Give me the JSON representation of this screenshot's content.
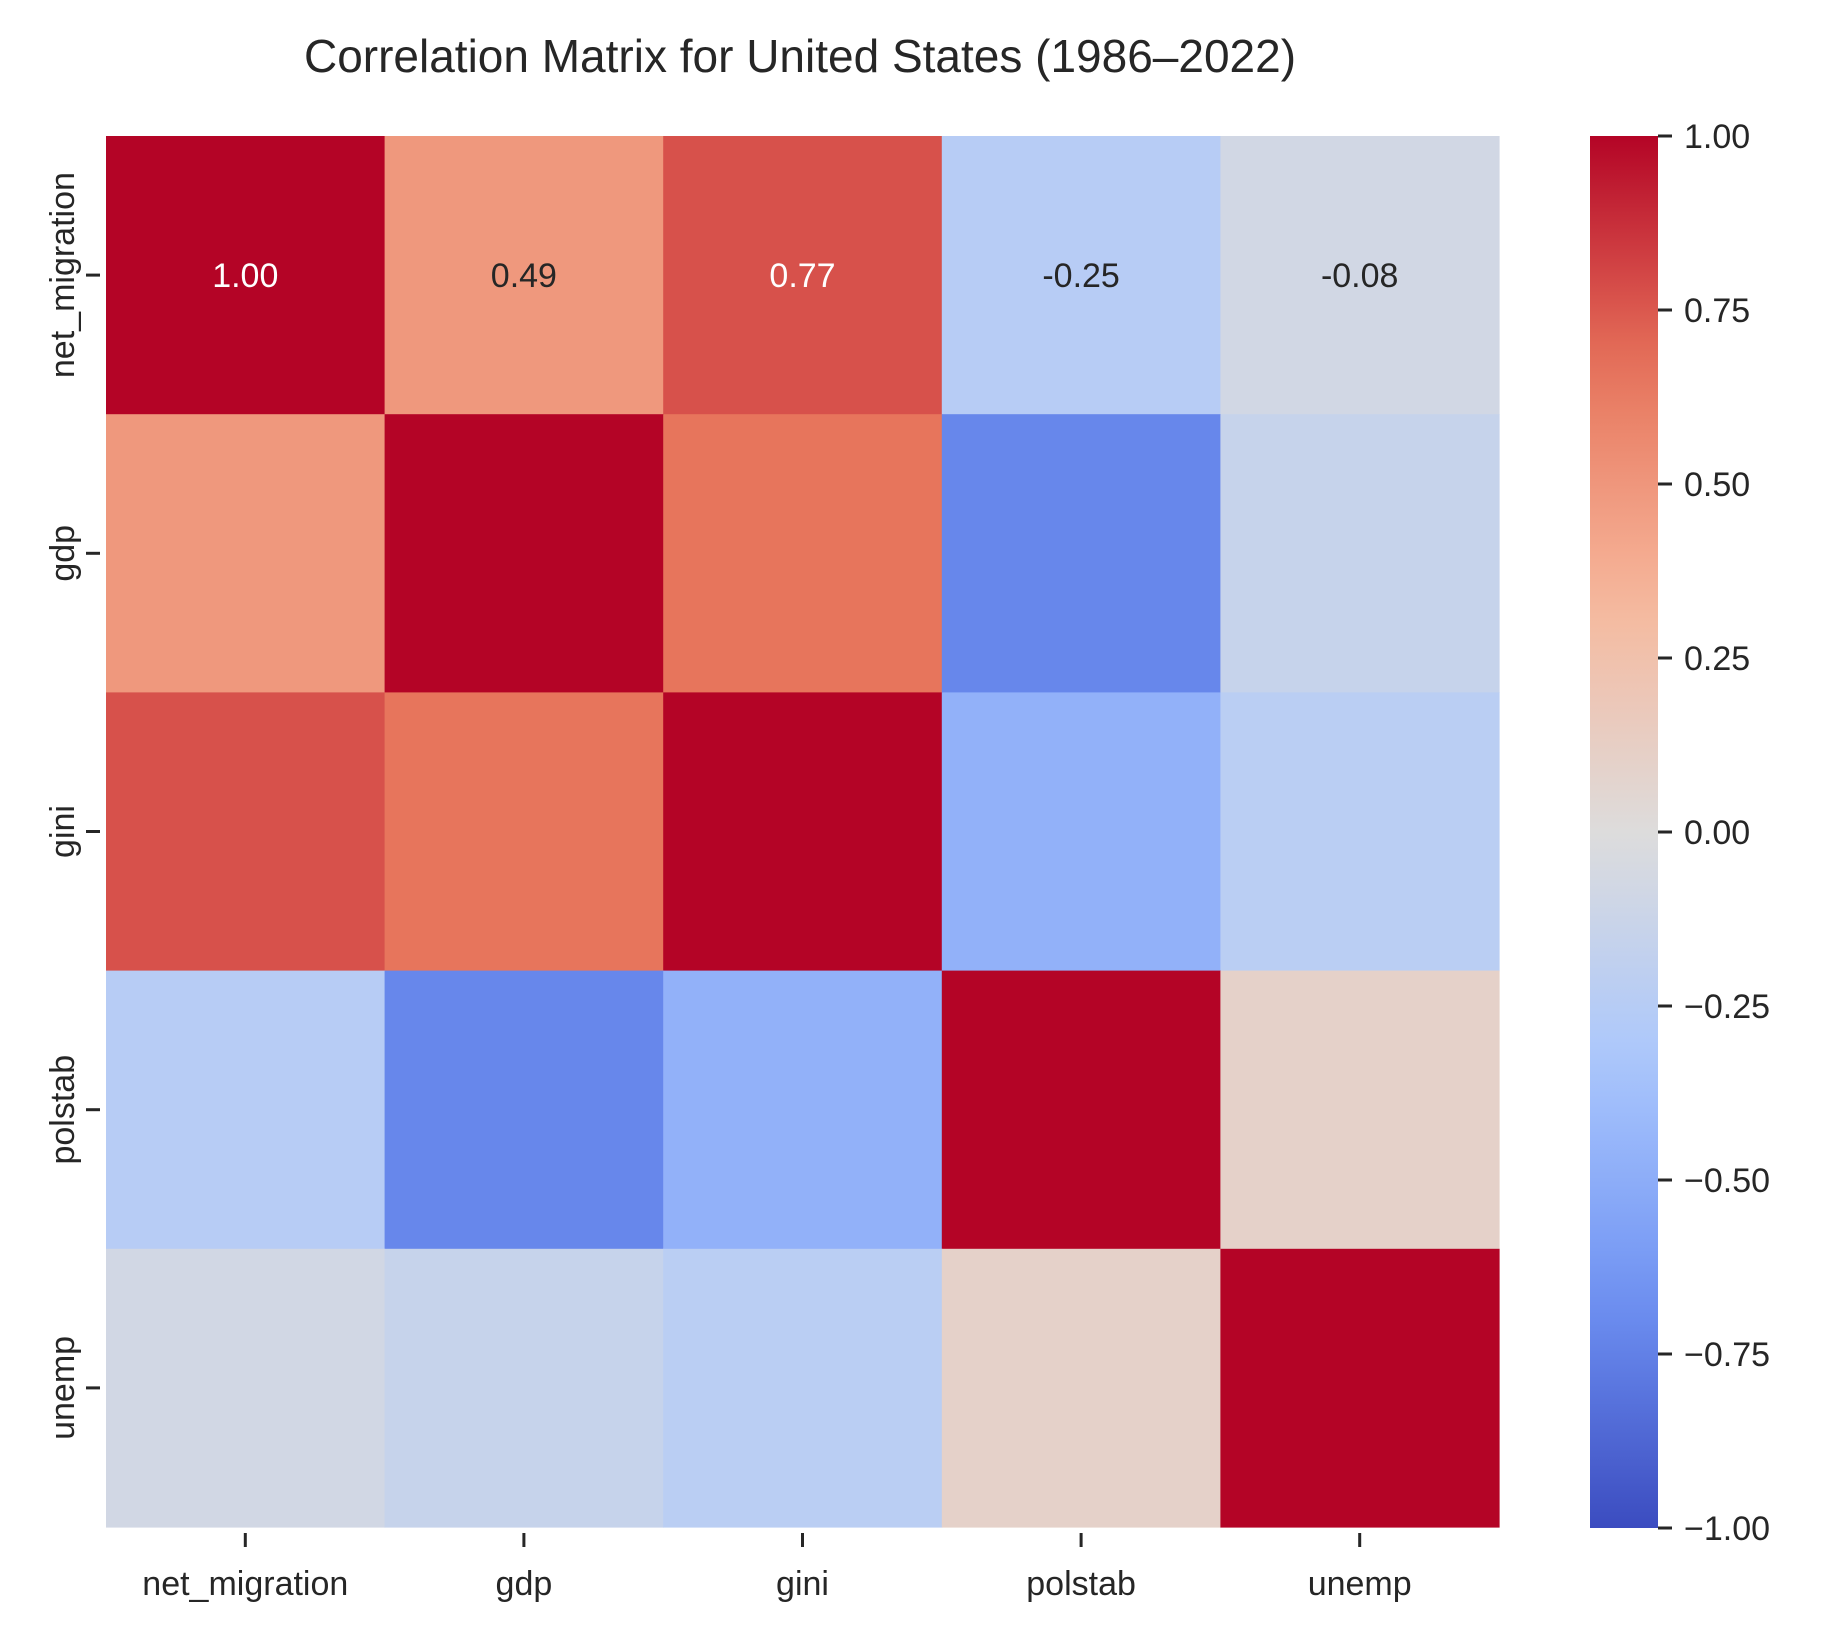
{
  "chart_data": {
    "type": "heatmap",
    "title": "Correlation Matrix for United States (1986–2022)",
    "xlabel": "",
    "ylabel": "",
    "x_categories": [
      "net_migration",
      "gdp",
      "gini",
      "polstab",
      "unemp"
    ],
    "y_categories": [
      "net_migration",
      "gdp",
      "gini",
      "polstab",
      "unemp"
    ],
    "values": [
      [
        1.0,
        0.49,
        0.77,
        -0.25,
        -0.08
      ],
      [
        0.49,
        1.0,
        0.66,
        -0.72,
        -0.15
      ],
      [
        0.77,
        0.66,
        1.0,
        -0.47,
        -0.23
      ],
      [
        -0.25,
        -0.72,
        -0.47,
        1.0,
        0.1
      ],
      [
        -0.08,
        -0.15,
        -0.23,
        0.1,
        1.0
      ]
    ],
    "annotations": [
      [
        "1.00",
        "0.49",
        "0.77",
        "-0.25",
        "-0.08"
      ],
      [
        "",
        "",
        "",
        "",
        ""
      ],
      [
        "",
        "",
        "",
        "",
        ""
      ],
      [
        "",
        "",
        "",
        "",
        ""
      ],
      [
        "",
        "",
        "",
        "",
        ""
      ]
    ],
    "colormap": "coolwarm",
    "vmin": -1.0,
    "vmax": 1.0,
    "colorbar_ticks": [
      1.0,
      0.75,
      0.5,
      0.25,
      0.0,
      -0.25,
      -0.5,
      -0.75,
      -1.0
    ],
    "colorbar_tick_labels": [
      "1.00",
      "0.75",
      "0.50",
      "0.25",
      "0.00",
      "−0.25",
      "−0.50",
      "−0.75",
      "−1.00"
    ],
    "colors": {
      "text": "#262626",
      "cmap_stops": [
        "#3b4cc0",
        "#6f92f3",
        "#aac7fd",
        "#dddcdc",
        "#f7b89c",
        "#e7745b",
        "#b40426"
      ]
    }
  }
}
